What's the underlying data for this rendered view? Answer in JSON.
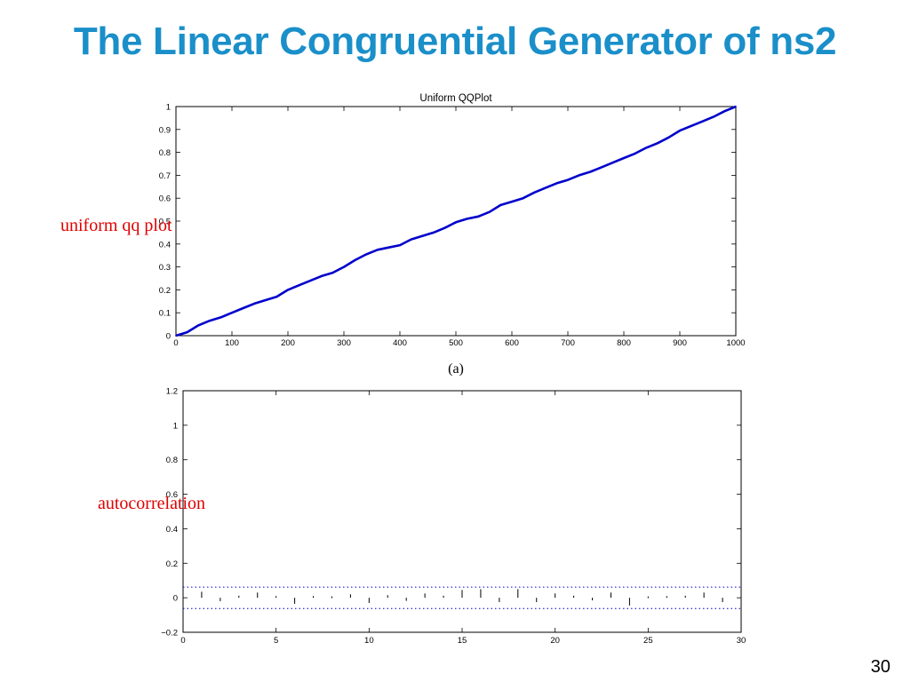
{
  "slide": {
    "title": "The Linear Congruential Generator of ns2",
    "page_number": "30",
    "annotations": {
      "qq": "uniform qq plot",
      "acf": "autocorrelation"
    },
    "colors": {
      "title": "#1a8fc9",
      "annotation": "#e00000",
      "series": "#0000cc"
    }
  },
  "chart_data": [
    {
      "type": "line",
      "title": "Uniform QQPlot",
      "caption": "(a)",
      "xlabel": "",
      "ylabel": "",
      "xlim": [
        0,
        1000
      ],
      "ylim": [
        0,
        1
      ],
      "x_ticks": [
        0,
        100,
        200,
        300,
        400,
        500,
        600,
        700,
        800,
        900,
        1000
      ],
      "y_ticks": [
        0,
        0.1,
        0.2,
        0.3,
        0.4,
        0.5,
        0.6,
        0.7,
        0.8,
        0.9,
        1
      ],
      "grid": false,
      "series": [
        {
          "x": [
            0,
            20,
            40,
            60,
            80,
            100,
            120,
            140,
            160,
            180,
            200,
            220,
            240,
            260,
            280,
            300,
            320,
            340,
            360,
            380,
            400,
            420,
            440,
            460,
            480,
            500,
            520,
            540,
            560,
            580,
            600,
            620,
            640,
            660,
            680,
            700,
            720,
            740,
            760,
            780,
            800,
            820,
            840,
            860,
            880,
            900,
            920,
            940,
            960,
            980,
            1000
          ],
          "y": [
            0,
            0.015,
            0.045,
            0.065,
            0.08,
            0.1,
            0.12,
            0.14,
            0.155,
            0.17,
            0.2,
            0.22,
            0.24,
            0.26,
            0.275,
            0.3,
            0.33,
            0.355,
            0.375,
            0.385,
            0.395,
            0.42,
            0.435,
            0.45,
            0.47,
            0.495,
            0.51,
            0.52,
            0.54,
            0.57,
            0.585,
            0.6,
            0.625,
            0.645,
            0.665,
            0.68,
            0.7,
            0.715,
            0.735,
            0.755,
            0.775,
            0.795,
            0.82,
            0.84,
            0.865,
            0.895,
            0.915,
            0.935,
            0.955,
            0.98,
            1.0
          ]
        }
      ]
    },
    {
      "type": "bar",
      "title": "",
      "xlabel": "",
      "ylabel": "",
      "xlim": [
        0,
        30
      ],
      "ylim": [
        -0.2,
        1.2
      ],
      "x_ticks": [
        0,
        5,
        10,
        15,
        20,
        25,
        30
      ],
      "y_ticks": [
        -0.2,
        0,
        0.2,
        0.4,
        0.6,
        0.8,
        1,
        1.2
      ],
      "y_tick_labels": [
        "−0.2",
        "0",
        "0.2",
        "0.4",
        "0.6",
        "0.8",
        "1",
        "1.2"
      ],
      "grid": false,
      "confidence_bounds": [
        0.062,
        -0.062
      ],
      "lags": [
        1,
        2,
        3,
        4,
        5,
        6,
        7,
        8,
        9,
        10,
        11,
        12,
        13,
        14,
        15,
        16,
        17,
        18,
        19,
        20,
        21,
        22,
        23,
        24,
        25,
        26,
        27,
        28,
        29
      ],
      "values": [
        0.035,
        -0.02,
        0.012,
        0.03,
        0.01,
        -0.035,
        0.01,
        0.008,
        0.02,
        -0.03,
        0.015,
        -0.018,
        0.025,
        0.012,
        0.045,
        0.05,
        -0.025,
        0.05,
        -0.025,
        0.025,
        0.012,
        -0.015,
        0.03,
        -0.045,
        0.008,
        0.01,
        0.012,
        0.03,
        -0.025
      ]
    }
  ]
}
